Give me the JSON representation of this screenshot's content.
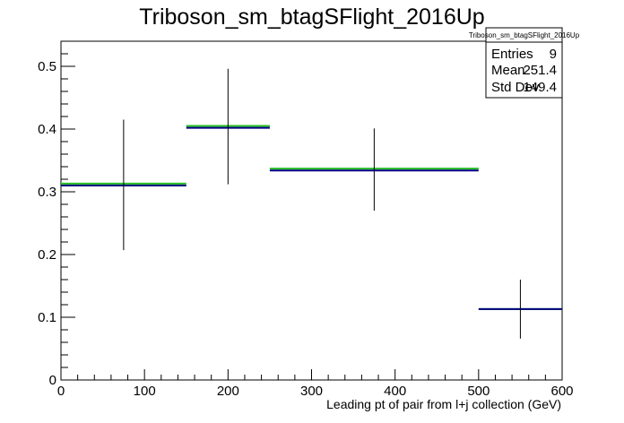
{
  "chart_data": {
    "type": "histogram",
    "title": "Triboson_sm_btagSFlight_2016Up",
    "xlabel": "Leading pt of pair from l+j collection (GeV)",
    "ylabel": "",
    "xlim": [
      0,
      600
    ],
    "ylim": [
      0,
      0.54
    ],
    "x_ticks": [
      0,
      100,
      200,
      300,
      400,
      500,
      600
    ],
    "y_ticks": [
      0,
      0.1,
      0.2,
      0.3,
      0.4,
      0.5
    ],
    "x_tick_labels": [
      "0",
      "100",
      "200",
      "300",
      "400",
      "500",
      "600"
    ],
    "y_tick_labels": [
      "0",
      "0.1",
      "0.2",
      "0.3",
      "0.4",
      "0.5"
    ],
    "grid": false,
    "bins": [
      {
        "x_low": 0,
        "x_high": 150,
        "value": 0.31,
        "err_low": 0.207,
        "err_high": 0.415,
        "shifted_value": 0.313
      },
      {
        "x_low": 150,
        "x_high": 250,
        "value": 0.402,
        "err_low": 0.312,
        "err_high": 0.496,
        "shifted_value": 0.405
      },
      {
        "x_low": 250,
        "x_high": 500,
        "value": 0.334,
        "err_low": 0.27,
        "err_high": 0.401,
        "shifted_value": 0.337
      },
      {
        "x_low": 500,
        "x_high": 600,
        "value": 0.113,
        "err_low": 0.066,
        "err_high": 0.16,
        "shifted_value": 0.113
      }
    ],
    "series_colors": {
      "nominal": "#000080",
      "shifted": "#22bb22",
      "errors": "#000000"
    },
    "stats_box": {
      "name": "Triboson_sm_btagSFlight_2016Up",
      "location": "top-right",
      "rows": [
        {
          "label": "Entries",
          "value": "9"
        },
        {
          "label": "Mean",
          "value": "251.4"
        },
        {
          "label": "Std Dev",
          "value": "149.4"
        }
      ]
    }
  }
}
